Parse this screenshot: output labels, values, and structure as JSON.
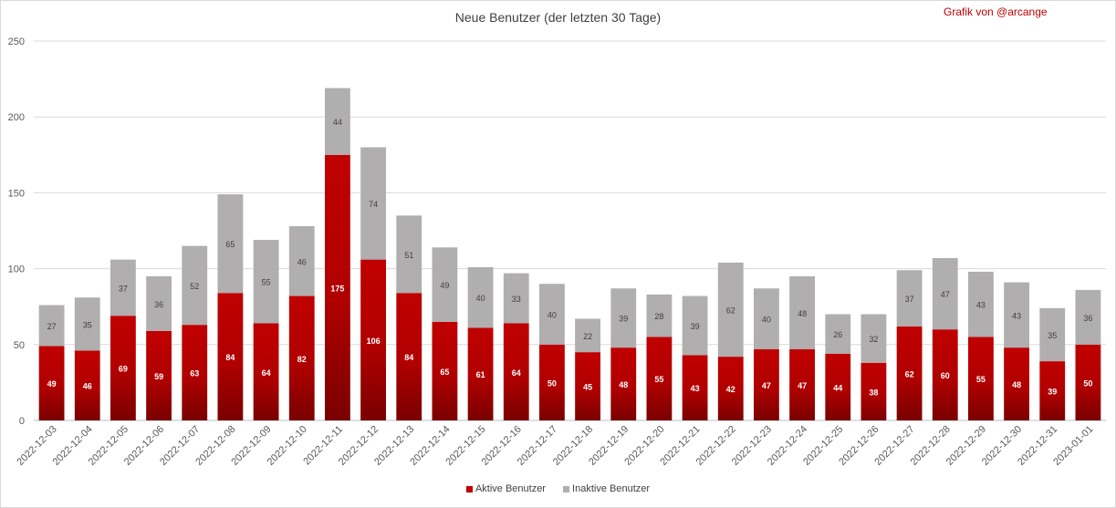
{
  "colors": {
    "active": "#c00000",
    "active_dark": "#7a0000",
    "inactive": "#b0aeae",
    "grid": "#d9d9d9",
    "credit": "#c00000"
  },
  "credit": "Grafik von @arcange",
  "chart_data": {
    "type": "bar",
    "stacked": true,
    "title": "Neue Benutzer (der letzten 30 Tage)",
    "xlabel": "",
    "ylabel": "",
    "ylim": [
      0,
      250
    ],
    "yticks": [
      0,
      50,
      100,
      150,
      200,
      250
    ],
    "grid": true,
    "legend_position": "bottom",
    "categories": [
      "2022-12-03",
      "2022-12-04",
      "2022-12-05",
      "2022-12-06",
      "2022-12-07",
      "2022-12-08",
      "2022-12-09",
      "2022-12-10",
      "2022-12-11",
      "2022-12-12",
      "2022-12-13",
      "2022-12-14",
      "2022-12-15",
      "2022-12-16",
      "2022-12-17",
      "2022-12-18",
      "2022-12-19",
      "2022-12-20",
      "2022-12-21",
      "2022-12-22",
      "2022-12-23",
      "2022-12-24",
      "2022-12-25",
      "2022-12-26",
      "2022-12-27",
      "2022-12-28",
      "2022-12-29",
      "2022-12-30",
      "2022-12-31",
      "2023-01-01"
    ],
    "series": [
      {
        "name": "Aktive Benutzer",
        "values": [
          49,
          46,
          69,
          59,
          63,
          84,
          64,
          82,
          175,
          106,
          84,
          65,
          61,
          64,
          50,
          45,
          48,
          55,
          43,
          42,
          47,
          47,
          44,
          38,
          62,
          60,
          55,
          48,
          39,
          50
        ]
      },
      {
        "name": "Inaktive Benutzer",
        "values": [
          27,
          35,
          37,
          36,
          52,
          65,
          55,
          46,
          44,
          74,
          51,
          49,
          40,
          33,
          40,
          22,
          39,
          28,
          39,
          62,
          40,
          48,
          26,
          32,
          37,
          47,
          43,
          43,
          35,
          36
        ]
      }
    ]
  }
}
